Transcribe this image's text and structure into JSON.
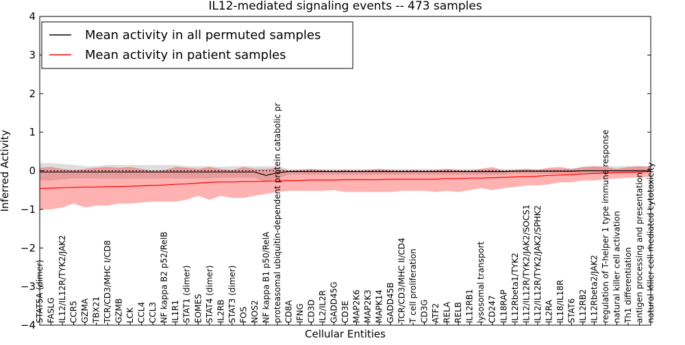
{
  "chart_data": {
    "type": "line",
    "title": "IL12-mediated signaling events -- 473 samples",
    "xlabel": "Cellular Entities",
    "ylabel": "Inferred Activity",
    "ylim": [
      -4,
      4
    ],
    "yticks": [
      -4,
      -3,
      -2,
      -1,
      0,
      1,
      2,
      3,
      4
    ],
    "ytick_labels": [
      "−4",
      "−3",
      "−2",
      "−1",
      "0",
      "1",
      "2",
      "3",
      "4"
    ],
    "grid": false,
    "legend_position": "top-left",
    "legend": [
      {
        "name": "Mean activity in all permuted samples",
        "color": "#000000"
      },
      {
        "name": "Mean activity in patient samples",
        "color": "#ff0000"
      }
    ],
    "categories": [
      "STAT5A (dimer)",
      "FASLG",
      "IL12/IL12R/TYK2/JAK2",
      "CCR5",
      "GZMA",
      "TBX21",
      "TCR/CD3/MHC I/CD8",
      "GZMB",
      "LCK",
      "CCL4",
      "CCL3",
      "NF kappa B2 p52/RelB",
      "IL1R1",
      "STAT1 (dimer)",
      "EOMES",
      "STAT4 (dimer)",
      "IL2RB",
      "STAT3 (dimer)",
      "FOS",
      "NOS2",
      "NF kappa B1 p50/RelA",
      "proteasomal ubiquitin-dependent protein catabolic pr",
      "CD8A",
      "IFNG",
      "CD3D",
      "IL2/IL2R",
      "GADD45G",
      "CD3E",
      "MAP2K6",
      "MAP2K3",
      "MAPK14",
      "GADD45B",
      "TCR/CD3/MHC II/CD4",
      "T cell proliferation",
      "CD3G",
      "ATF2",
      "RELA",
      "RELB",
      "IL12RB1",
      "lysosomal transport",
      "CD247",
      "IL18RAP",
      "IL12Rbeta1/TYK2",
      "IL12/IL12R/TYK2/JAK2/SOCS1",
      "IL12/IL12R/TYK2/JAK2/SPHK2",
      "IL2RA",
      "IL18/IL18R",
      "STAT6",
      "IL12RB2",
      "IL12Rbeta2/JAK2",
      "regulation of T-helper 1 type immune response",
      "natural killer cell activation",
      "Th1 differentiation",
      "antigen processing and presentation",
      "natural killer cell mediated cytotoxicity"
    ],
    "series": [
      {
        "name": "Mean activity in all permuted samples",
        "color": "#000000",
        "values": [
          -0.03,
          -0.03,
          -0.03,
          -0.03,
          -0.03,
          -0.03,
          -0.03,
          -0.03,
          -0.03,
          -0.03,
          -0.03,
          -0.03,
          -0.03,
          -0.03,
          -0.03,
          -0.03,
          -0.03,
          -0.03,
          -0.03,
          -0.03,
          -0.12,
          -0.05,
          -0.02,
          -0.02,
          -0.02,
          -0.02,
          -0.02,
          -0.02,
          -0.02,
          -0.02,
          -0.02,
          -0.02,
          -0.02,
          -0.02,
          -0.02,
          -0.02,
          -0.02,
          -0.02,
          -0.02,
          -0.02,
          -0.02,
          -0.02,
          -0.01,
          -0.01,
          -0.01,
          -0.01,
          -0.01,
          -0.01,
          0.0,
          0.0,
          0.0,
          0.0,
          0.0,
          0.0,
          0.0
        ],
        "upper": [
          0.2,
          0.2,
          0.18,
          0.15,
          0.12,
          0.12,
          0.15,
          0.15,
          0.15,
          0.15,
          0.15,
          0.15,
          0.15,
          0.12,
          0.12,
          0.12,
          0.1,
          0.12,
          0.12,
          0.12,
          0.12,
          0.12,
          0.05,
          0.05,
          0.05,
          0.05,
          0.05,
          0.05,
          0.05,
          0.05,
          0.05,
          0.05,
          0.05,
          0.05,
          0.05,
          0.05,
          0.05,
          0.05,
          0.05,
          0.05,
          0.05,
          0.05,
          0.05,
          0.05,
          0.05,
          0.05,
          0.05,
          0.05,
          0.1,
          0.12,
          0.12,
          0.12,
          0.12,
          0.12,
          0.12
        ],
        "lower": [
          -0.25,
          -0.25,
          -0.22,
          -0.2,
          -0.2,
          -0.2,
          -0.2,
          -0.2,
          -0.2,
          -0.2,
          -0.2,
          -0.2,
          -0.2,
          -0.2,
          -0.2,
          -0.2,
          -0.18,
          -0.18,
          -0.18,
          -0.18,
          -0.3,
          -0.2,
          -0.1,
          -0.1,
          -0.1,
          -0.1,
          -0.1,
          -0.1,
          -0.1,
          -0.1,
          -0.1,
          -0.1,
          -0.1,
          -0.1,
          -0.1,
          -0.1,
          -0.1,
          -0.1,
          -0.1,
          -0.1,
          -0.1,
          -0.1,
          -0.08,
          -0.08,
          -0.08,
          -0.08,
          -0.08,
          -0.08,
          -0.06,
          -0.06,
          -0.06,
          -0.06,
          -0.06,
          -0.06,
          -0.06
        ]
      },
      {
        "name": "Mean activity in patient samples",
        "color": "#ff0000",
        "values": [
          -0.46,
          -0.45,
          -0.44,
          -0.43,
          -0.42,
          -0.42,
          -0.41,
          -0.41,
          -0.4,
          -0.39,
          -0.38,
          -0.37,
          -0.35,
          -0.34,
          -0.32,
          -0.3,
          -0.29,
          -0.29,
          -0.28,
          -0.28,
          -0.27,
          -0.26,
          -0.25,
          -0.25,
          -0.24,
          -0.24,
          -0.24,
          -0.23,
          -0.23,
          -0.23,
          -0.23,
          -0.22,
          -0.22,
          -0.22,
          -0.22,
          -0.22,
          -0.2,
          -0.2,
          -0.19,
          -0.19,
          -0.18,
          -0.17,
          -0.16,
          -0.15,
          -0.14,
          -0.12,
          -0.11,
          -0.1,
          -0.08,
          -0.07,
          -0.06,
          -0.05,
          -0.04,
          -0.03,
          -0.01
        ],
        "upper": [
          0.08,
          0.1,
          0.05,
          0.02,
          0.05,
          0.08,
          0.1,
          0.08,
          0.1,
          0.05,
          0.0,
          0.02,
          0.1,
          0.08,
          0.05,
          0.1,
          0.05,
          0.02,
          0.1,
          0.05,
          0.05,
          0.08,
          0.0,
          0.02,
          0.05,
          0.02,
          0.0,
          0.02,
          0.0,
          0.02,
          0.05,
          0.02,
          0.0,
          0.02,
          0.0,
          0.02,
          0.05,
          0.02,
          0.0,
          0.05,
          0.1,
          0.0,
          0.02,
          0.05,
          0.02,
          0.08,
          0.1,
          0.05,
          0.1,
          0.12,
          0.1,
          0.05,
          0.1,
          0.12,
          0.1
        ],
        "lower": [
          -1.0,
          -1.0,
          -0.95,
          -0.85,
          -0.95,
          -0.9,
          -0.9,
          -0.85,
          -0.85,
          -0.82,
          -0.8,
          -0.8,
          -0.8,
          -0.75,
          -0.65,
          -0.75,
          -0.65,
          -0.7,
          -0.7,
          -0.65,
          -0.6,
          -0.55,
          -0.52,
          -0.52,
          -0.52,
          -0.52,
          -0.5,
          -0.55,
          -0.55,
          -0.55,
          -0.55,
          -0.55,
          -0.52,
          -0.52,
          -0.52,
          -0.55,
          -0.52,
          -0.55,
          -0.5,
          -0.45,
          -0.5,
          -0.45,
          -0.42,
          -0.38,
          -0.38,
          -0.35,
          -0.3,
          -0.3,
          -0.25,
          -0.25,
          -0.22,
          -0.2,
          -0.18,
          -0.18,
          -0.15
        ]
      }
    ]
  }
}
